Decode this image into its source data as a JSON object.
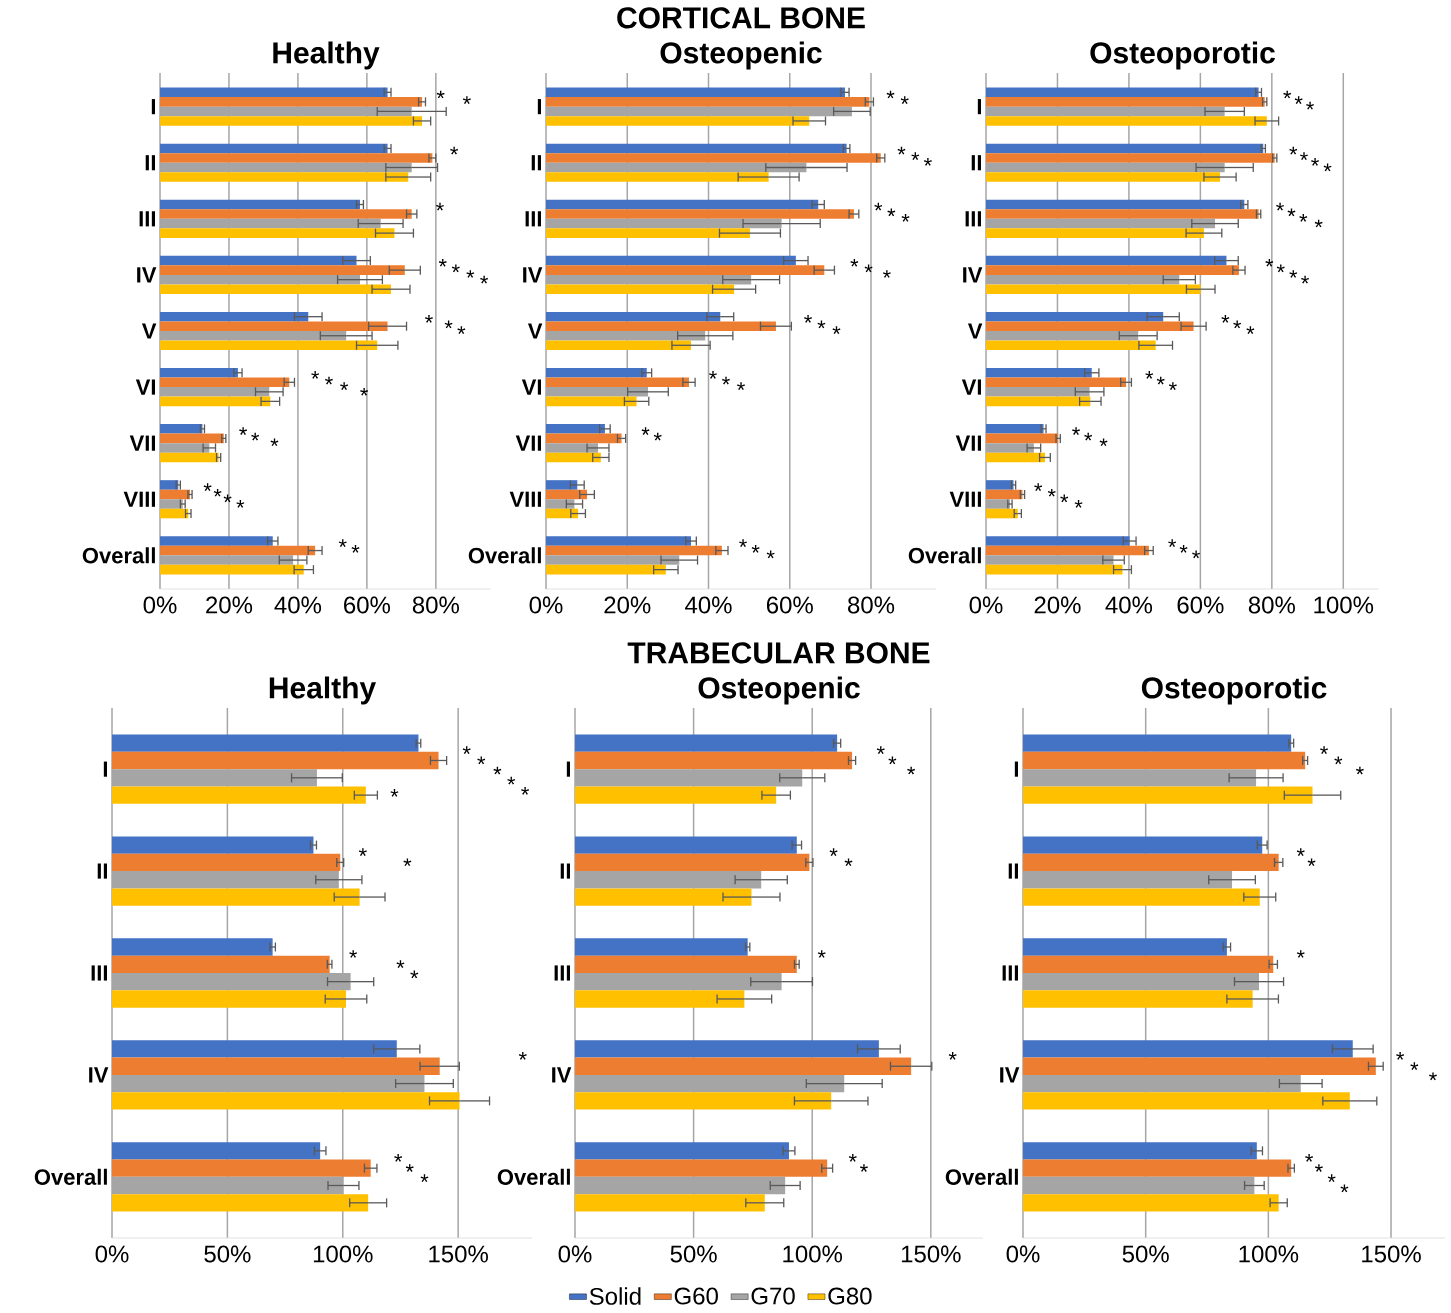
{
  "chart_data": [
    {
      "type": "bar",
      "orientation": "horizontal",
      "title": "Healthy",
      "categories": [
        "I",
        "II",
        "III",
        "IV",
        "V",
        "VI",
        "VII",
        "VIII",
        "Overall"
      ],
      "grid": "x",
      "xlim": [
        0,
        96
      ],
      "xticks": [
        {
          "value": 0,
          "label": "0%"
        },
        {
          "value": 20,
          "label": "20%"
        },
        {
          "value": 40,
          "label": "40%"
        },
        {
          "value": 60,
          "label": "60%"
        },
        {
          "value": 80,
          "label": "80%"
        }
      ],
      "series": [
        {
          "color": "#4472c4",
          "values": [
            66,
            66,
            58,
            57,
            43,
            22.6,
            12.3,
            5.3,
            32.7
          ],
          "errors": [
            1,
            1,
            1,
            4,
            4,
            1.2,
            0.6,
            0.6,
            1.5
          ]
        },
        {
          "color": "#ed7d31",
          "values": [
            76,
            79,
            73,
            71,
            66,
            37.5,
            18.5,
            8.7,
            45
          ],
          "errors": [
            1,
            1,
            1.5,
            4.5,
            5.5,
            1.5,
            0.6,
            0.6,
            2
          ]
        },
        {
          "color": "#a5a5a5",
          "values": [
            73,
            73,
            64,
            58,
            54,
            31.7,
            14.3,
            6.6,
            38.6
          ],
          "errors": [
            10,
            7.5,
            6.5,
            6.5,
            7.5,
            4,
            1.8,
            0.7,
            4
          ]
        },
        {
          "color": "#ffc000",
          "values": [
            76,
            72,
            68,
            67,
            63,
            32,
            17,
            8.2,
            41.7
          ],
          "errors": [
            2.5,
            6.5,
            5.5,
            5.5,
            6,
            2.7,
            0.6,
            0.8,
            2.8
          ]
        }
      ],
      "annotations": [
        "*",
        "*",
        "*",
        "*",
        "*",
        "*",
        "*",
        "*",
        "*",
        "*",
        "*",
        "*",
        "*",
        "*",
        "*",
        "*",
        "*",
        "*",
        "*",
        "*",
        "*",
        "*",
        "*",
        "*"
      ]
    },
    {
      "type": "bar",
      "orientation": "horizontal",
      "title": "Osteopenic",
      "categories": [
        "I",
        "II",
        "III",
        "IV",
        "V",
        "VI",
        "VII",
        "VIII",
        "Overall"
      ],
      "grid": "x",
      "xlim": [
        0,
        96
      ],
      "xticks": [
        {
          "value": 0,
          "label": "0%"
        },
        {
          "value": 20,
          "label": "20%"
        },
        {
          "value": 40,
          "label": "40%"
        },
        {
          "value": 60,
          "label": "60%"
        },
        {
          "value": 80,
          "label": "80%"
        }
      ],
      "series": [
        {
          "color": "#4472c4",
          "values": [
            73.6,
            74,
            67,
            61.5,
            42.9,
            24.8,
            14.5,
            7.7,
            35.7
          ],
          "errors": [
            1,
            0.8,
            1.5,
            3,
            3.3,
            1.2,
            1.3,
            1.7,
            1.3
          ]
        },
        {
          "color": "#ed7d31",
          "values": [
            79.6,
            82.4,
            75.8,
            68.5,
            56.6,
            35.2,
            18.6,
            10.1,
            43.3
          ],
          "errors": [
            1,
            1,
            1.2,
            2.5,
            3.8,
            1.5,
            1,
            1.8,
            1.5
          ]
        },
        {
          "color": "#a5a5a5",
          "values": [
            75.3,
            64.1,
            58,
            50.5,
            39.2,
            25.1,
            12.8,
            7,
            32.8
          ],
          "errors": [
            4.5,
            10,
            9.5,
            7,
            6.8,
            5,
            2.7,
            2,
            4.5
          ]
        },
        {
          "color": "#ffc000",
          "values": [
            64.8,
            54.8,
            50.2,
            46.3,
            35.7,
            22.3,
            13.5,
            7.9,
            29.5
          ],
          "errors": [
            4,
            7.5,
            7.5,
            5.3,
            4.7,
            3,
            2,
            1.8,
            3
          ]
        }
      ],
      "annotations": [
        "CORTICAL BONE",
        "*",
        "*",
        "*",
        "*",
        "*",
        "*",
        "*",
        "*",
        "*",
        "*",
        "*",
        "*",
        "*",
        "*",
        "*",
        "*",
        "*",
        "*",
        "*",
        "*",
        "*",
        "*"
      ]
    },
    {
      "type": "bar",
      "orientation": "horizontal",
      "title": "Osteoporotic",
      "categories": [
        "I",
        "II",
        "III",
        "IV",
        "V",
        "VI",
        "VII",
        "VIII",
        "Overall"
      ],
      "grid": "x",
      "xlim": [
        0,
        110
      ],
      "xticks": [
        {
          "value": 0,
          "label": "0%"
        },
        {
          "value": 20,
          "label": "20%"
        },
        {
          "value": 40,
          "label": "40%"
        },
        {
          "value": 60,
          "label": "60%"
        },
        {
          "value": 80,
          "label": "80%"
        },
        {
          "value": 100,
          "label": "100%"
        }
      ],
      "series": [
        {
          "color": "#4472c4",
          "values": [
            76.3,
            77.6,
            72.3,
            67.3,
            49.6,
            29.6,
            16.1,
            7.7,
            40.2
          ],
          "errors": [
            0.8,
            0.6,
            1,
            3.3,
            4.5,
            2,
            0.7,
            0.6,
            1.8
          ]
        },
        {
          "color": "#ed7d31",
          "values": [
            78,
            80.8,
            76.3,
            70.8,
            58.1,
            39.2,
            20.2,
            10.2,
            45.6
          ],
          "errors": [
            0.6,
            0.6,
            0.6,
            1.7,
            3.5,
            1.5,
            0.6,
            0.6,
            1.2
          ]
        },
        {
          "color": "#a5a5a5",
          "values": [
            66.8,
            66.8,
            64.1,
            54.1,
            42.6,
            29,
            13.4,
            6.7,
            35.7
          ],
          "errors": [
            5.5,
            8,
            6.5,
            4.5,
            5.3,
            4,
            1.9,
            0.6,
            3
          ]
        },
        {
          "color": "#ffc000",
          "values": [
            78.6,
            65.5,
            61,
            60.1,
            47.5,
            29.2,
            16.5,
            8.9,
            38.2
          ],
          "errors": [
            3.3,
            4.5,
            5,
            4,
            4.7,
            3,
            1.5,
            1,
            2.5
          ]
        }
      ],
      "annotations": [
        "*",
        "*",
        "*",
        "*",
        "*",
        "*",
        "*",
        "*",
        "*",
        "*",
        "*",
        "*",
        "*",
        "*",
        "*",
        "*",
        "*",
        "*",
        "*",
        "*",
        "*",
        "*",
        "*",
        "*",
        "*",
        "*",
        "*",
        "*",
        "*",
        "*",
        "*"
      ]
    },
    {
      "type": "bar",
      "orientation": "horizontal",
      "title": "Healthy",
      "categories": [
        "I",
        "II",
        "III",
        "IV",
        "Overall"
      ],
      "grid": "x",
      "xlim": [
        0,
        182
      ],
      "xticks": [
        {
          "value": 0,
          "label": "0%"
        },
        {
          "value": 50,
          "label": "50%"
        },
        {
          "value": 100,
          "label": "100%"
        },
        {
          "value": 150,
          "label": "150%"
        }
      ],
      "series": [
        {
          "color": "#4472c4",
          "values": [
            132.8,
            87.3,
            69.6,
            123.4,
            90.2
          ],
          "errors": [
            1,
            1.3,
            1.2,
            10,
            2.5
          ]
        },
        {
          "color": "#ed7d31",
          "values": [
            141.5,
            98.9,
            94.3,
            142,
            112.1
          ],
          "errors": [
            3.5,
            1.5,
            1,
            8.5,
            2.7
          ]
        },
        {
          "color": "#a5a5a5",
          "values": [
            88.8,
            98.3,
            103.4,
            135.4,
            100.3
          ],
          "errors": [
            11,
            10,
            10,
            12.5,
            6.7
          ]
        },
        {
          "color": "#ffc000",
          "values": [
            110,
            107.3,
            101.4,
            150.6,
            111
          ],
          "errors": [
            5,
            11,
            9,
            13,
            8
          ]
        }
      ],
      "annotations": [
        "*",
        "*",
        "*",
        "*",
        "*",
        "*",
        "*",
        "*",
        "*",
        "*",
        "*",
        "*",
        "*",
        "*",
        "*"
      ]
    },
    {
      "type": "bar",
      "orientation": "horizontal",
      "title": "Osteopenic",
      "categories": [
        "I",
        "II",
        "III",
        "IV",
        "Overall"
      ],
      "grid": "x",
      "legend": "bottom",
      "xlim": [
        0,
        172
      ],
      "xticks": [
        {
          "value": 0,
          "label": "0%"
        },
        {
          "value": 50,
          "label": "50%"
        },
        {
          "value": 100,
          "label": "100%"
        },
        {
          "value": 150,
          "label": "150%"
        }
      ],
      "series": [
        {
          "name": "Solid",
          "color": "#4472c4",
          "values": [
            110.5,
            93.5,
            72.8,
            128.1,
            90.2
          ],
          "errors": [
            1.5,
            2,
            0.9,
            9,
            2.5
          ]
        },
        {
          "name": "G60",
          "color": "#ed7d31",
          "values": [
            116.8,
            98.8,
            93.5,
            141.7,
            106.3
          ],
          "errors": [
            1.5,
            1.5,
            1,
            8.7,
            2.3
          ]
        },
        {
          "name": "G70",
          "color": "#a5a5a5",
          "values": [
            95.8,
            78.5,
            87.1,
            113.5,
            88.6
          ],
          "errors": [
            9.5,
            11,
            13,
            16,
            6.3
          ]
        },
        {
          "name": "G80",
          "color": "#ffc000",
          "values": [
            84.8,
            74.4,
            71.4,
            108,
            80
          ],
          "errors": [
            6,
            12,
            11.5,
            15.5,
            8
          ]
        }
      ],
      "annotations": [
        "TRABECULAR BONE",
        "*",
        "*",
        "*",
        "*",
        "*",
        "*",
        "*",
        "*",
        "*"
      ]
    },
    {
      "type": "bar",
      "orientation": "horizontal",
      "title": "Osteoporotic",
      "categories": [
        "I",
        "II",
        "III",
        "IV",
        "Overall"
      ],
      "grid": "x",
      "xlim": [
        0,
        172
      ],
      "xticks": [
        {
          "value": 0,
          "label": "0%"
        },
        {
          "value": 50,
          "label": "50%"
        },
        {
          "value": 100,
          "label": "100%"
        },
        {
          "value": 150,
          "label": "150%"
        }
      ],
      "series": [
        {
          "color": "#4472c4",
          "values": [
            109.3,
            97.5,
            83.1,
            134.4,
            95.3
          ],
          "errors": [
            1,
            2,
            1.5,
            8.3,
            2.3
          ]
        },
        {
          "color": "#ed7d31",
          "values": [
            115,
            104.2,
            102,
            143.8,
            109.3
          ],
          "errors": [
            1,
            1.7,
            1.7,
            3,
            1.3
          ]
        },
        {
          "color": "#a5a5a5",
          "values": [
            95,
            85.2,
            96.2,
            113.2,
            94.3
          ],
          "errors": [
            11,
            9.5,
            10,
            8.7,
            4
          ]
        },
        {
          "color": "#ffc000",
          "values": [
            118,
            96.5,
            93.6,
            133.2,
            104.2
          ],
          "errors": [
            11.5,
            6.5,
            10.5,
            11,
            3.5
          ]
        }
      ],
      "annotations": [
        "*",
        "*",
        "*",
        "*",
        "*",
        "*",
        "*",
        "*",
        "*",
        "*",
        "*",
        "*",
        "*"
      ]
    }
  ]
}
